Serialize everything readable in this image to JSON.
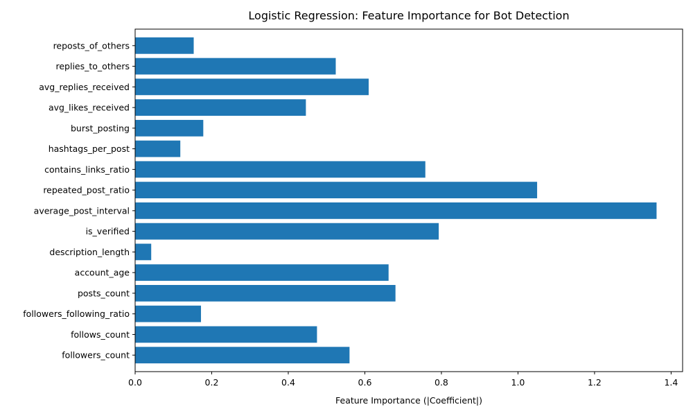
{
  "chart_data": {
    "type": "bar",
    "orientation": "horizontal",
    "title": "Logistic Regression: Feature Importance for Bot Detection",
    "xlabel": "Feature Importance (|Coefficient|)",
    "ylabel": "",
    "xlim": [
      0,
      1.43
    ],
    "xticks": [
      0.0,
      0.2,
      0.4,
      0.6,
      0.8,
      1.0,
      1.2,
      1.4
    ],
    "xtick_labels": [
      "0.0",
      "0.2",
      "0.4",
      "0.6",
      "0.8",
      "1.0",
      "1.2",
      "1.4"
    ],
    "bar_color": "#1f77b4",
    "categories": [
      "followers_count",
      "follows_count",
      "followers_following_ratio",
      "posts_count",
      "account_age",
      "description_length",
      "is_verified",
      "average_post_interval",
      "repeated_post_ratio",
      "contains_links_ratio",
      "hashtags_per_post",
      "burst_posting",
      "avg_likes_received",
      "avg_replies_received",
      "replies_to_others",
      "reposts_of_others"
    ],
    "values": [
      0.56,
      0.475,
      0.172,
      0.68,
      0.662,
      0.042,
      0.793,
      1.362,
      1.05,
      0.758,
      0.118,
      0.178,
      0.446,
      0.61,
      0.524,
      0.153
    ],
    "grid": false
  }
}
